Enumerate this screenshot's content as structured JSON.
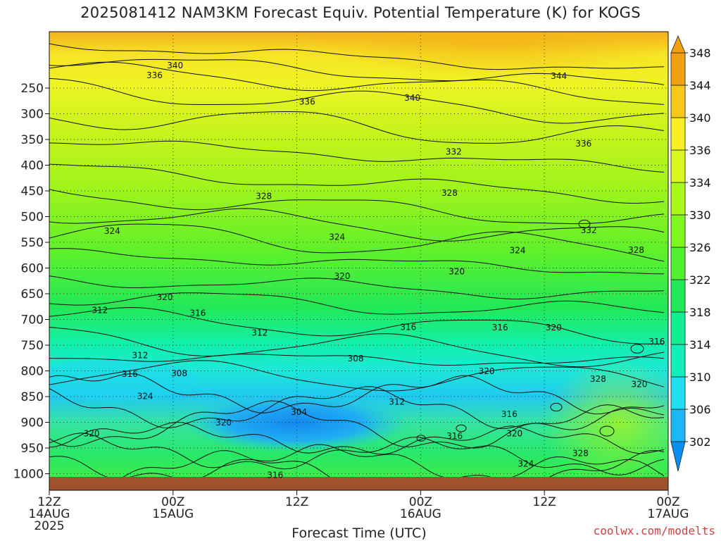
{
  "title": "2025081412 NAM3KM Forecast Equiv. Potential Temperature (K) for KOGS",
  "credit": "coolwx.com/modelts",
  "chart_data": {
    "type": "heatmap",
    "title": "2025081412 NAM3KM Forecast Equiv. Potential Temperature (K) for KOGS",
    "xlabel": "Forecast Time (UTC)",
    "ylabel": "",
    "y_axis": "pressure (hPa), inverted, log-like",
    "ylim": [
      1025,
      200
    ],
    "y_ticks": [
      250,
      300,
      350,
      400,
      450,
      500,
      550,
      600,
      650,
      700,
      750,
      800,
      850,
      900,
      950,
      1000
    ],
    "x_ticks": [
      {
        "hour": 0,
        "lines": [
          "12Z",
          "14AUG",
          "2025"
        ]
      },
      {
        "hour": 12,
        "lines": [
          "00Z",
          "15AUG"
        ]
      },
      {
        "hour": 24,
        "lines": [
          "12Z"
        ]
      },
      {
        "hour": 36,
        "lines": [
          "00Z",
          "16AUG"
        ]
      },
      {
        "hour": 48,
        "lines": [
          "12Z"
        ]
      },
      {
        "hour": 60,
        "lines": [
          "00Z",
          "17AUG"
        ]
      }
    ],
    "colorbar": {
      "levels": [
        302,
        306,
        310,
        314,
        318,
        322,
        326,
        330,
        334,
        336,
        340,
        344,
        348
      ],
      "colors": [
        "#0a8ef0",
        "#1ab8f5",
        "#20e0f0",
        "#10f0b8",
        "#10f090",
        "#20e858",
        "#50f030",
        "#80f820",
        "#a8f818",
        "#d8f820",
        "#f8f020",
        "#f8c818",
        "#f0a010"
      ]
    },
    "contour_labels": [
      {
        "text": "340",
        "hour": 12.2,
        "p": 206
      },
      {
        "text": "336",
        "hour": 10.2,
        "p": 225
      },
      {
        "text": "344",
        "hour": 49.4,
        "p": 227
      },
      {
        "text": "340",
        "hour": 35.2,
        "p": 269
      },
      {
        "text": "336",
        "hour": 25.0,
        "p": 277
      },
      {
        "text": "332",
        "hour": 39.2,
        "p": 374
      },
      {
        "text": "336",
        "hour": 51.8,
        "p": 358
      },
      {
        "text": "328",
        "hour": 20.8,
        "p": 460
      },
      {
        "text": "328",
        "hour": 38.8,
        "p": 454
      },
      {
        "text": "324",
        "hour": 6.1,
        "p": 528
      },
      {
        "text": "324",
        "hour": 27.9,
        "p": 540
      },
      {
        "text": "324",
        "hour": 45.4,
        "p": 566
      },
      {
        "text": "332",
        "hour": 52.3,
        "p": 527
      },
      {
        "text": "328",
        "hour": 56.9,
        "p": 565
      },
      {
        "text": "320",
        "hour": 39.5,
        "p": 607
      },
      {
        "text": "320",
        "hour": 28.4,
        "p": 616
      },
      {
        "text": "320",
        "hour": 11.2,
        "p": 657
      },
      {
        "text": "312",
        "hour": 4.9,
        "p": 682
      },
      {
        "text": "316",
        "hour": 14.4,
        "p": 688
      },
      {
        "text": "316",
        "hour": 34.8,
        "p": 715
      },
      {
        "text": "316",
        "hour": 43.7,
        "p": 716
      },
      {
        "text": "320",
        "hour": 48.9,
        "p": 716
      },
      {
        "text": "312",
        "hour": 20.4,
        "p": 726
      },
      {
        "text": "316",
        "hour": 58.9,
        "p": 743
      },
      {
        "text": "312",
        "hour": 8.8,
        "p": 770
      },
      {
        "text": "308",
        "hour": 29.7,
        "p": 776
      },
      {
        "text": "308",
        "hour": 12.6,
        "p": 805
      },
      {
        "text": "316",
        "hour": 7.8,
        "p": 806
      },
      {
        "text": "320",
        "hour": 42.4,
        "p": 801
      },
      {
        "text": "328",
        "hour": 53.2,
        "p": 816
      },
      {
        "text": "320",
        "hour": 57.2,
        "p": 826
      },
      {
        "text": "324",
        "hour": 9.3,
        "p": 849
      },
      {
        "text": "312",
        "hour": 33.7,
        "p": 860
      },
      {
        "text": "304",
        "hour": 24.2,
        "p": 880
      },
      {
        "text": "316",
        "hour": 44.6,
        "p": 884
      },
      {
        "text": "320",
        "hour": 16.9,
        "p": 901
      },
      {
        "text": "320",
        "hour": 4.1,
        "p": 922
      },
      {
        "text": "316",
        "hour": 39.3,
        "p": 927
      },
      {
        "text": "320",
        "hour": 45.1,
        "p": 922
      },
      {
        "text": "328",
        "hour": 51.5,
        "p": 960
      },
      {
        "text": "324",
        "hour": 46.2,
        "p": 981
      },
      {
        "text": "316",
        "hour": 21.9,
        "p": 1003
      }
    ]
  }
}
